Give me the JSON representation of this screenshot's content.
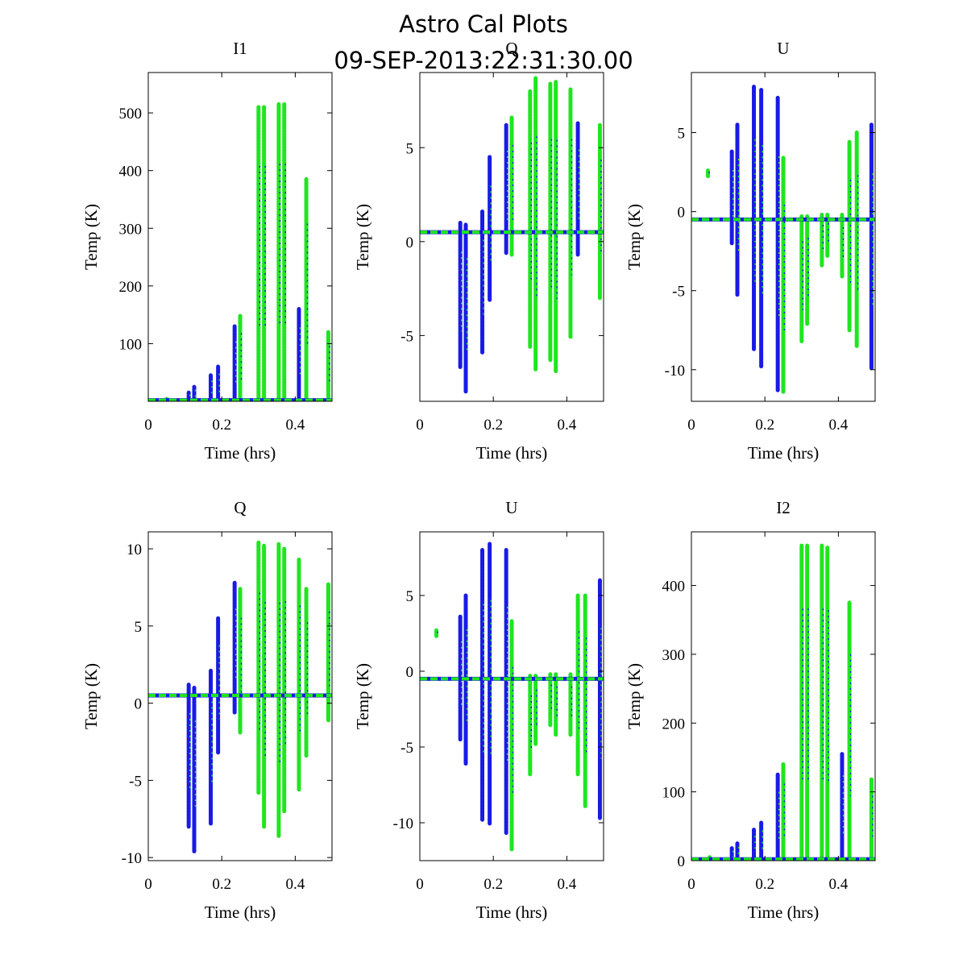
{
  "suptitle": [
    "Astro Cal Plots",
    "09-SEP-2013:22:31:30.00"
  ],
  "colors": {
    "series_a": "#1a1ae6",
    "series_b": "#1ee61e"
  },
  "chart_data": [
    {
      "type": "scatter",
      "title": "I1",
      "xlabel": "Time (hrs)",
      "ylabel": "Temp (K)",
      "xlim": [
        0,
        0.5
      ],
      "ylim": [
        0,
        570
      ],
      "xticks": [
        0,
        0.2,
        0.4
      ],
      "xtick_labels": [
        "0",
        "0.2",
        "0.4"
      ],
      "yticks": [
        100,
        200,
        300,
        400,
        500
      ],
      "ytick_labels": [
        "100",
        "200",
        "300",
        "400",
        "500"
      ],
      "baseline": 2,
      "spikes": [
        {
          "x": 0.05,
          "min": 0,
          "max": 4,
          "s": "b"
        },
        {
          "x": 0.11,
          "min": 0,
          "max": 15,
          "s": "a"
        },
        {
          "x": 0.125,
          "min": 0,
          "max": 25,
          "s": "a"
        },
        {
          "x": 0.17,
          "min": 0,
          "max": 45,
          "s": "a"
        },
        {
          "x": 0.19,
          "min": 0,
          "max": 60,
          "s": "a"
        },
        {
          "x": 0.235,
          "min": 0,
          "max": 130,
          "s": "a"
        },
        {
          "x": 0.25,
          "min": 0,
          "max": 148,
          "s": "b"
        },
        {
          "x": 0.3,
          "min": 0,
          "max": 510,
          "s": "b"
        },
        {
          "x": 0.315,
          "min": 0,
          "max": 510,
          "s": "b"
        },
        {
          "x": 0.355,
          "min": 0,
          "max": 515,
          "s": "b"
        },
        {
          "x": 0.37,
          "min": 0,
          "max": 515,
          "s": "b"
        },
        {
          "x": 0.41,
          "min": 0,
          "max": 160,
          "s": "a"
        },
        {
          "x": 0.43,
          "min": 0,
          "max": 385,
          "s": "b"
        },
        {
          "x": 0.49,
          "min": 0,
          "max": 120,
          "s": "b"
        }
      ]
    },
    {
      "type": "scatter",
      "title": "Q",
      "xlabel": "Time (hrs)",
      "ylabel": "Temp (K)",
      "xlim": [
        0,
        0.5
      ],
      "ylim": [
        -8.5,
        9.0
      ],
      "xticks": [
        0,
        0.2,
        0.4
      ],
      "xtick_labels": [
        "0",
        "0.2",
        "0.4"
      ],
      "yticks": [
        -5,
        0,
        5
      ],
      "ytick_labels": [
        "-5",
        "0",
        "5"
      ],
      "baseline": 0.5,
      "spikes": [
        {
          "x": 0.11,
          "min": -6.7,
          "max": 1.0,
          "s": "a"
        },
        {
          "x": 0.125,
          "min": -8.0,
          "max": 0.9,
          "s": "a"
        },
        {
          "x": 0.17,
          "min": -5.9,
          "max": 1.6,
          "s": "a"
        },
        {
          "x": 0.19,
          "min": -3.1,
          "max": 4.5,
          "s": "a"
        },
        {
          "x": 0.235,
          "min": -0.6,
          "max": 6.2,
          "s": "a"
        },
        {
          "x": 0.25,
          "min": -0.7,
          "max": 6.6,
          "s": "b"
        },
        {
          "x": 0.3,
          "min": -5.6,
          "max": 8.0,
          "s": "b"
        },
        {
          "x": 0.315,
          "min": -6.8,
          "max": 8.7,
          "s": "b"
        },
        {
          "x": 0.355,
          "min": -6.3,
          "max": 8.4,
          "s": "b"
        },
        {
          "x": 0.37,
          "min": -6.9,
          "max": 8.5,
          "s": "b"
        },
        {
          "x": 0.41,
          "min": -5.1,
          "max": 8.1,
          "s": "b"
        },
        {
          "x": 0.43,
          "min": -0.7,
          "max": 6.3,
          "s": "a"
        },
        {
          "x": 0.49,
          "min": -3.0,
          "max": 6.2,
          "s": "b"
        }
      ]
    },
    {
      "type": "scatter",
      "title": "U",
      "xlabel": "Time (hrs)",
      "ylabel": "Temp (K)",
      "xlim": [
        0,
        0.5
      ],
      "ylim": [
        -12,
        8.8
      ],
      "xticks": [
        0,
        0.2,
        0.4
      ],
      "xtick_labels": [
        "0",
        "0.2",
        "0.4"
      ],
      "yticks": [
        -10,
        -5,
        0,
        5
      ],
      "ytick_labels": [
        "-10",
        "-5",
        "0",
        "5"
      ],
      "baseline": -0.5,
      "spikes": [
        {
          "x": 0.045,
          "min": 2.2,
          "max": 2.6,
          "s": "b"
        },
        {
          "x": 0.11,
          "min": -2.0,
          "max": 3.8,
          "s": "a"
        },
        {
          "x": 0.125,
          "min": -5.3,
          "max": 5.5,
          "s": "a"
        },
        {
          "x": 0.17,
          "min": -8.7,
          "max": 7.9,
          "s": "a"
        },
        {
          "x": 0.19,
          "min": -9.8,
          "max": 7.7,
          "s": "a"
        },
        {
          "x": 0.235,
          "min": -11.3,
          "max": 7.2,
          "s": "a"
        },
        {
          "x": 0.25,
          "min": -11.4,
          "max": 3.4,
          "s": "b"
        },
        {
          "x": 0.3,
          "min": -8.2,
          "max": -0.3,
          "s": "b"
        },
        {
          "x": 0.315,
          "min": -7.1,
          "max": -0.3,
          "s": "b"
        },
        {
          "x": 0.355,
          "min": -3.4,
          "max": -0.2,
          "s": "b"
        },
        {
          "x": 0.37,
          "min": -2.8,
          "max": -0.2,
          "s": "b"
        },
        {
          "x": 0.41,
          "min": -4.1,
          "max": -0.2,
          "s": "b"
        },
        {
          "x": 0.43,
          "min": -7.5,
          "max": 4.4,
          "s": "b"
        },
        {
          "x": 0.45,
          "min": -8.5,
          "max": 5.0,
          "s": "b"
        },
        {
          "x": 0.49,
          "min": -9.9,
          "max": 5.5,
          "s": "a"
        }
      ]
    },
    {
      "type": "scatter",
      "title": "Q",
      "xlabel": "Time (hrs)",
      "ylabel": "Temp (K)",
      "xlim": [
        0,
        0.5
      ],
      "ylim": [
        -10.2,
        11.1
      ],
      "xticks": [
        0,
        0.2,
        0.4
      ],
      "xtick_labels": [
        "0",
        "0.2",
        "0.4"
      ],
      "yticks": [
        -10,
        -5,
        0,
        5,
        10
      ],
      "ytick_labels": [
        "-10",
        "-5",
        "0",
        "5",
        "10"
      ],
      "baseline": 0.5,
      "spikes": [
        {
          "x": 0.11,
          "min": -8.0,
          "max": 1.2,
          "s": "a"
        },
        {
          "x": 0.125,
          "min": -9.6,
          "max": 1.0,
          "s": "a"
        },
        {
          "x": 0.17,
          "min": -7.8,
          "max": 2.1,
          "s": "a"
        },
        {
          "x": 0.19,
          "min": -3.2,
          "max": 5.5,
          "s": "a"
        },
        {
          "x": 0.235,
          "min": -0.6,
          "max": 7.8,
          "s": "a"
        },
        {
          "x": 0.25,
          "min": -1.9,
          "max": 7.4,
          "s": "b"
        },
        {
          "x": 0.3,
          "min": -5.8,
          "max": 10.4,
          "s": "b"
        },
        {
          "x": 0.315,
          "min": -8.0,
          "max": 10.2,
          "s": "b"
        },
        {
          "x": 0.355,
          "min": -8.6,
          "max": 10.3,
          "s": "b"
        },
        {
          "x": 0.37,
          "min": -7.0,
          "max": 10.0,
          "s": "b"
        },
        {
          "x": 0.41,
          "min": -5.6,
          "max": 9.3,
          "s": "b"
        },
        {
          "x": 0.43,
          "min": -3.4,
          "max": 7.4,
          "s": "b"
        },
        {
          "x": 0.49,
          "min": -1.1,
          "max": 7.7,
          "s": "b"
        }
      ]
    },
    {
      "type": "scatter",
      "title": "U",
      "xlabel": "Time (hrs)",
      "ylabel": "Temp (K)",
      "xlim": [
        0,
        0.5
      ],
      "ylim": [
        -12.5,
        9.2
      ],
      "xticks": [
        0,
        0.2,
        0.4
      ],
      "xtick_labels": [
        "0",
        "0.2",
        "0.4"
      ],
      "yticks": [
        -10,
        -5,
        0,
        5
      ],
      "ytick_labels": [
        "-10",
        "-5",
        "0",
        "5"
      ],
      "baseline": -0.5,
      "spikes": [
        {
          "x": 0.045,
          "min": 2.3,
          "max": 2.7,
          "s": "b"
        },
        {
          "x": 0.11,
          "min": -4.5,
          "max": 3.6,
          "s": "a"
        },
        {
          "x": 0.125,
          "min": -6.1,
          "max": 5.0,
          "s": "a"
        },
        {
          "x": 0.17,
          "min": -9.8,
          "max": 8.0,
          "s": "a"
        },
        {
          "x": 0.19,
          "min": -10.1,
          "max": 8.4,
          "s": "a"
        },
        {
          "x": 0.235,
          "min": -10.7,
          "max": 8.0,
          "s": "a"
        },
        {
          "x": 0.25,
          "min": -11.8,
          "max": 3.3,
          "s": "b"
        },
        {
          "x": 0.3,
          "min": -6.8,
          "max": -0.3,
          "s": "b"
        },
        {
          "x": 0.315,
          "min": -4.8,
          "max": -0.3,
          "s": "b"
        },
        {
          "x": 0.355,
          "min": -3.6,
          "max": -0.2,
          "s": "b"
        },
        {
          "x": 0.37,
          "min": -4.2,
          "max": -0.2,
          "s": "b"
        },
        {
          "x": 0.41,
          "min": -4.2,
          "max": -0.2,
          "s": "b"
        },
        {
          "x": 0.43,
          "min": -6.8,
          "max": 5.0,
          "s": "b"
        },
        {
          "x": 0.45,
          "min": -8.9,
          "max": 5.0,
          "s": "b"
        },
        {
          "x": 0.49,
          "min": -9.7,
          "max": 6.0,
          "s": "a"
        }
      ]
    },
    {
      "type": "scatter",
      "title": "I2",
      "xlabel": "Time (hrs)",
      "ylabel": "Temp (K)",
      "xlim": [
        0,
        0.5
      ],
      "ylim": [
        0,
        478
      ],
      "xticks": [
        0,
        0.2,
        0.4
      ],
      "xtick_labels": [
        "0",
        "0.2",
        "0.4"
      ],
      "yticks": [
        0,
        100,
        200,
        300,
        400
      ],
      "ytick_labels": [
        "0",
        "100",
        "200",
        "300",
        "400"
      ],
      "baseline": 2,
      "spikes": [
        {
          "x": 0.05,
          "min": 0,
          "max": 5,
          "s": "b"
        },
        {
          "x": 0.11,
          "min": 0,
          "max": 18,
          "s": "a"
        },
        {
          "x": 0.125,
          "min": 0,
          "max": 25,
          "s": "a"
        },
        {
          "x": 0.17,
          "min": 0,
          "max": 45,
          "s": "a"
        },
        {
          "x": 0.19,
          "min": 0,
          "max": 55,
          "s": "a"
        },
        {
          "x": 0.235,
          "min": 0,
          "max": 125,
          "s": "a"
        },
        {
          "x": 0.25,
          "min": 0,
          "max": 140,
          "s": "b"
        },
        {
          "x": 0.3,
          "min": 0,
          "max": 458,
          "s": "b"
        },
        {
          "x": 0.315,
          "min": 0,
          "max": 458,
          "s": "b"
        },
        {
          "x": 0.355,
          "min": 0,
          "max": 458,
          "s": "b"
        },
        {
          "x": 0.37,
          "min": 0,
          "max": 455,
          "s": "b"
        },
        {
          "x": 0.41,
          "min": 0,
          "max": 155,
          "s": "a"
        },
        {
          "x": 0.43,
          "min": 0,
          "max": 375,
          "s": "b"
        },
        {
          "x": 0.49,
          "min": 0,
          "max": 118,
          "s": "b"
        }
      ]
    }
  ]
}
